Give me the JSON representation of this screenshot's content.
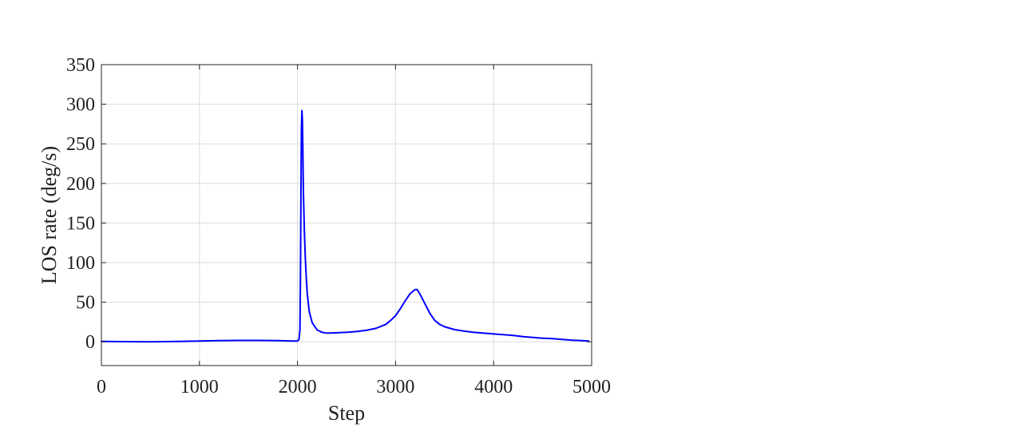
{
  "chart_data": {
    "type": "line",
    "title": "",
    "xlabel": "Step",
    "ylabel": "LOS rate (deg/s)",
    "xlim": [
      0,
      5000
    ],
    "ylim": [
      -30,
      350
    ],
    "xticks": [
      0,
      1000,
      2000,
      3000,
      4000,
      5000
    ],
    "yticks": [
      0,
      50,
      100,
      150,
      200,
      250,
      300,
      350
    ],
    "grid": true,
    "legend": "none",
    "series": [
      {
        "color": "#0000ff",
        "x": [
          0,
          200,
          500,
          800,
          1000,
          1200,
          1400,
          1600,
          1800,
          1950,
          2000,
          2015,
          2025,
          2030,
          2035,
          2040,
          2045,
          2050,
          2055,
          2060,
          2070,
          2080,
          2090,
          2100,
          2120,
          2150,
          2200,
          2250,
          2300,
          2400,
          2500,
          2600,
          2700,
          2800,
          2900,
          2950,
          3000,
          3050,
          3100,
          3150,
          3200,
          3220,
          3250,
          3300,
          3350,
          3400,
          3450,
          3500,
          3600,
          3700,
          3800,
          3900,
          4000,
          4100,
          4200,
          4300,
          4400,
          4500,
          4600,
          4700,
          4800,
          4900,
          4970
        ],
        "y": [
          0.5,
          0.3,
          0.0,
          0.5,
          1.0,
          1.5,
          1.8,
          1.8,
          1.5,
          1.0,
          1.0,
          3,
          15,
          80,
          180,
          270,
          292,
          280,
          240,
          190,
          140,
          105,
          80,
          60,
          38,
          24,
          15,
          12,
          11,
          11.5,
          12,
          13,
          14.5,
          17,
          22,
          27,
          33,
          42,
          52,
          61,
          66,
          66,
          60,
          48,
          36,
          27,
          22,
          19,
          15.5,
          13.5,
          12,
          11,
          10,
          9,
          8,
          6.5,
          5.5,
          4.5,
          4,
          3,
          2,
          1.5,
          1
        ]
      }
    ]
  }
}
